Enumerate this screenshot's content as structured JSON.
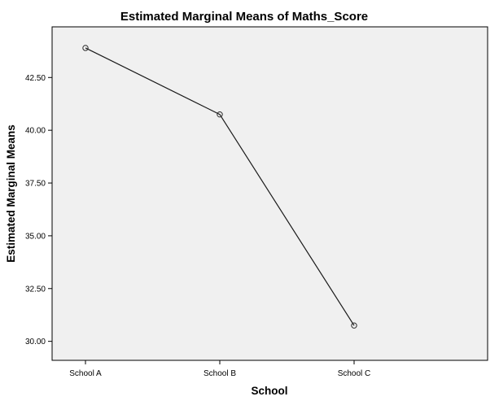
{
  "chart_data": {
    "type": "line",
    "title": "Estimated Marginal Means of Maths_Score",
    "xlabel": "School",
    "ylabel": "Estimated Marginal Means",
    "categories": [
      "School A",
      "School B",
      "School C"
    ],
    "series": [
      {
        "values": [
          43.9,
          40.75,
          30.75
        ]
      }
    ],
    "ylim": [
      29.1,
      44.9
    ],
    "yticks": [
      30.0,
      32.5,
      35.0,
      37.5,
      40.0,
      42.5
    ],
    "ytick_labels": [
      "30.00",
      "32.50",
      "35.00",
      "37.50",
      "40.00",
      "42.50"
    ],
    "grid": false,
    "legend": "none",
    "colors": {
      "plot_background": "#f0f0f0",
      "line": "#1a1a1a",
      "marker_stroke": "#2a2a2a",
      "frame": "#000000"
    }
  }
}
